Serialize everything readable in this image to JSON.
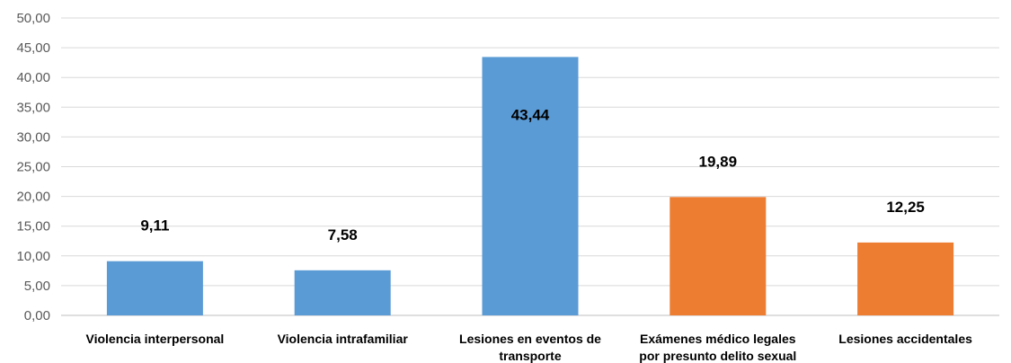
{
  "chart_data": {
    "type": "bar",
    "categories": [
      [
        "Violencia interpersonal"
      ],
      [
        "Violencia intrafamiliar"
      ],
      [
        "Lesiones en eventos de",
        "transporte"
      ],
      [
        "Exámenes médico legales",
        "por presunto delito sexual"
      ],
      [
        "Lesiones accidentales"
      ]
    ],
    "values": [
      9.11,
      7.58,
      43.44,
      19.89,
      12.25
    ],
    "data_labels": [
      "9,11",
      "7,58",
      "43,44",
      "19,89",
      "12,25"
    ],
    "bar_colors": [
      "#5b9bd5",
      "#5b9bd5",
      "#5b9bd5",
      "#ed7d31",
      "#ed7d31"
    ],
    "ylim": [
      0,
      50
    ],
    "yticks": [
      "0,00",
      "5,00",
      "10,00",
      "15,00",
      "20,00",
      "25,00",
      "30,00",
      "35,00",
      "40,00",
      "45,00",
      "50,00"
    ],
    "grid": true,
    "legend": "none",
    "title": "",
    "xlabel": "",
    "ylabel": ""
  }
}
